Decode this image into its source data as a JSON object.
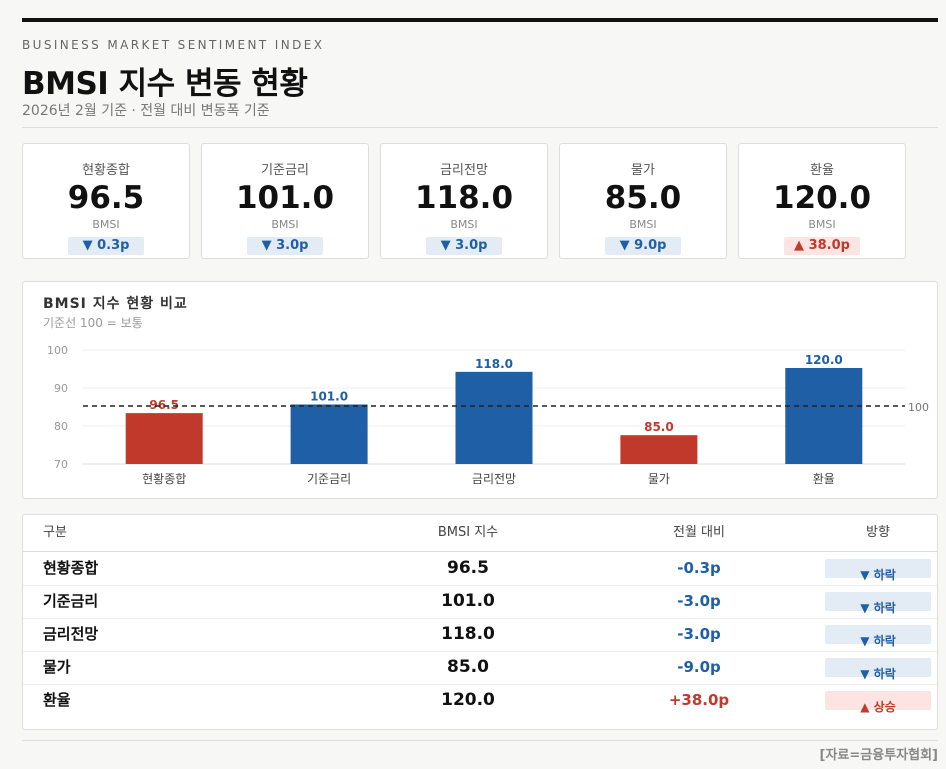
{
  "header": {
    "eyebrow": "BUSINESS MARKET SENTIMENT INDEX",
    "title": "BMSI 지수 변동 현황",
    "subtitle": "2026년 2월 기준 · 전월 대비 변동폭 기준"
  },
  "cards": [
    {
      "label": "현황종합",
      "value": "96.5",
      "unit": "BMSI",
      "change": "▼ 0.3p",
      "dir": "down"
    },
    {
      "label": "기준금리",
      "value": "101.0",
      "unit": "BMSI",
      "change": "▼ 3.0p",
      "dir": "down"
    },
    {
      "label": "금리전망",
      "value": "118.0",
      "unit": "BMSI",
      "change": "▼ 3.0p",
      "dir": "down"
    },
    {
      "label": "물가",
      "value": "85.0",
      "unit": "BMSI",
      "change": "▼ 9.0p",
      "dir": "down"
    },
    {
      "label": "환율",
      "value": "120.0",
      "unit": "BMSI",
      "change": "▲ 38.0p",
      "dir": "up"
    }
  ],
  "chart_data": {
    "type": "bar",
    "title": "BMSI 지수 현황 비교",
    "subtitle": "기준선 100 = 보통",
    "categories": [
      "현황종합",
      "기준금리",
      "금리전망",
      "물가",
      "환율"
    ],
    "values": [
      96.5,
      101.0,
      118.0,
      85.0,
      120.0
    ],
    "value_labels": [
      "96.5",
      "101.0",
      "118.0",
      "85.0",
      "120.0"
    ],
    "ylim": [
      70,
      100
    ],
    "yticks": [
      "70",
      "80",
      "90",
      "100"
    ],
    "reference_line": {
      "value": 100,
      "label": "100"
    },
    "grid": true,
    "legend": "none",
    "colors": {
      "above": "#1f5fa6",
      "below": "#c0392b"
    }
  },
  "table": {
    "headers": {
      "name": "구분",
      "value": "BMSI 지수",
      "change": "전월 대비",
      "direction": "방향"
    },
    "rows": [
      {
        "name": "현황종합",
        "value": "96.5",
        "change": "-0.3p",
        "direction": "▼ 하락",
        "dir": "down"
      },
      {
        "name": "기준금리",
        "value": "101.0",
        "change": "-3.0p",
        "direction": "▼ 하락",
        "dir": "down"
      },
      {
        "name": "금리전망",
        "value": "118.0",
        "change": "-3.0p",
        "direction": "▼ 하락",
        "dir": "down"
      },
      {
        "name": "물가",
        "value": "85.0",
        "change": "-9.0p",
        "direction": "▼ 하락",
        "dir": "down"
      },
      {
        "name": "환율",
        "value": "120.0",
        "change": "+38.0p",
        "direction": "▲ 상승",
        "dir": "up"
      }
    ]
  },
  "footer": {
    "source": "[자료=금융투자협회]"
  }
}
